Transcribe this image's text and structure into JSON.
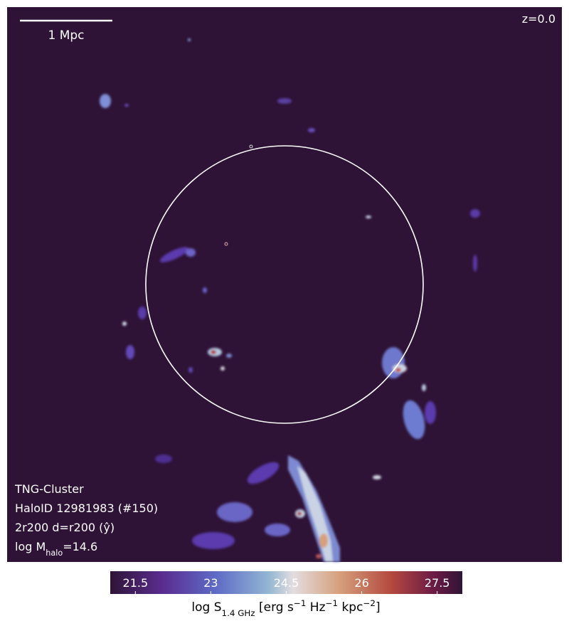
{
  "chart_data": {
    "type": "image",
    "scale_bar_label": "1 Mpc",
    "redshift_label": "z=0.0",
    "info_lines": [
      [
        {
          "text": "TNG-Cluster"
        }
      ],
      [
        {
          "text": "HaloID 12981983 (#150)"
        }
      ],
      [
        {
          "text": "2r200 d=r200 (ŷ)"
        }
      ],
      [
        {
          "text": "log M"
        },
        {
          "text": "halo",
          "shift": "sub"
        },
        {
          "text": "=14.6"
        }
      ]
    ],
    "colorbar": {
      "clim": [
        21.0,
        28.0
      ],
      "ticks": [
        21.5,
        23.0,
        24.5,
        26.0,
        27.5
      ],
      "label": [
        {
          "text": "log S"
        },
        {
          "text": "1.4 GHz",
          "shift": "sub"
        },
        {
          "text": " [erg s"
        },
        {
          "text": "−1",
          "shift": "super"
        },
        {
          "text": " Hz"
        },
        {
          "text": "−1",
          "shift": "super"
        },
        {
          "text": " kpc"
        },
        {
          "text": "−2",
          "shift": "super"
        },
        {
          "text": "]"
        }
      ]
    }
  }
}
